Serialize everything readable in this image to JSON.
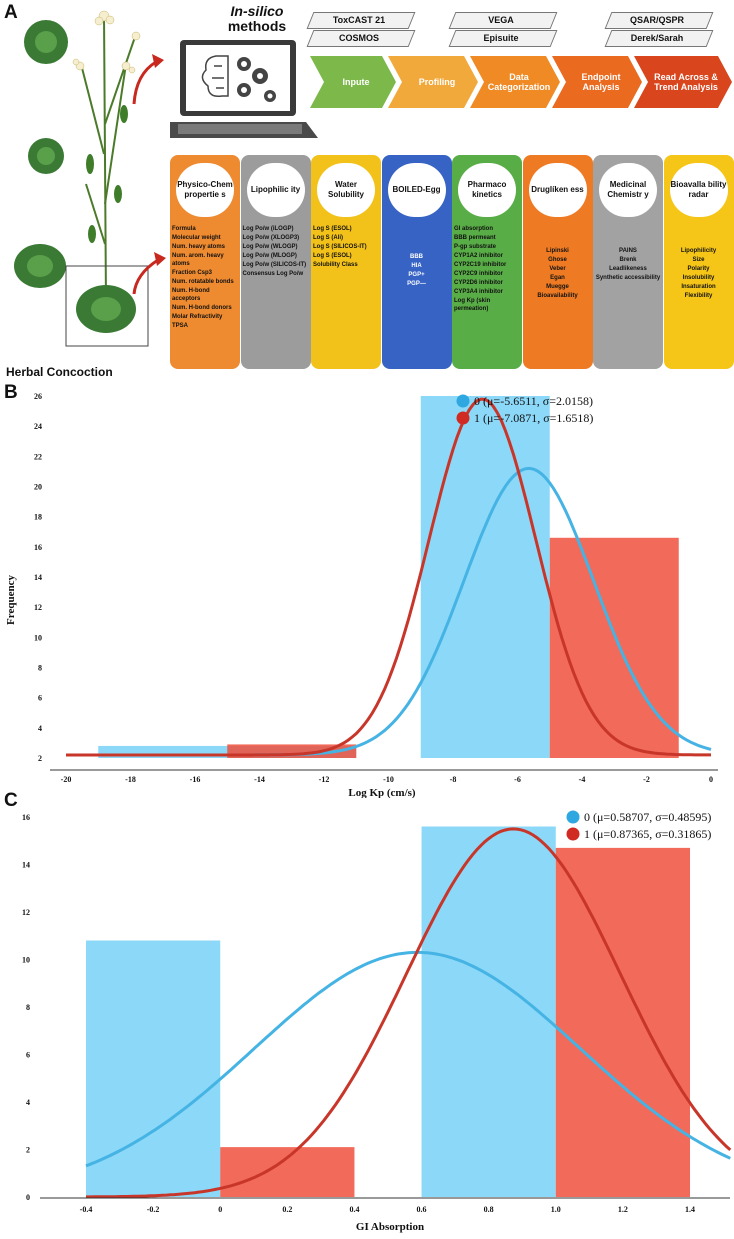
{
  "panels": {
    "a": "A",
    "b": "B",
    "c": "C"
  },
  "panel_a": {
    "herbal_label": "Herbal Concoction",
    "insilico_prefix": "In-silico",
    "insilico_suffix": "methods",
    "tools": [
      {
        "back": "ToxCAST 21",
        "front": "COSMOS"
      },
      {
        "back": "VEGA",
        "front": "Episuite"
      },
      {
        "back": "QSAR/QSPR",
        "front": "Derek/Sarah"
      }
    ],
    "steps": [
      {
        "label": "Inpute",
        "color": "#7db84a"
      },
      {
        "label": "Profiling",
        "color": "#f2a93b"
      },
      {
        "label": "Data Categorization",
        "color": "#f08a24"
      },
      {
        "label": "Endpoint Analysis",
        "color": "#ea6a1f"
      },
      {
        "label": "Read Across & Trend Analysis",
        "color": "#d9461e"
      }
    ],
    "columns": [
      {
        "title": "Physico-Chem propertie s",
        "color": "#ee8a2f",
        "align": "left",
        "items": [
          "Formula",
          "Molecular weight",
          "Num. heavy atoms",
          "Num. arom. heavy atoms",
          "Fraction Csp3",
          "Num. rotatable bonds",
          "Num. H-bond acceptors",
          "Num. H-bond donors",
          "Molar Refractivity",
          "TPSA"
        ]
      },
      {
        "title": "Lipophilic ity",
        "color": "#9c9c9c",
        "align": "left",
        "items": [
          "Log Po/w (iLOGP)",
          "Log Po/w (XLOGP3)",
          "Log Po/w (WLOGP)",
          "Log Po/w (MLOGP)",
          "Log Po/w (SILICOS-IT)",
          "Consensus Log Po/w"
        ]
      },
      {
        "title": "Water Solubility",
        "color": "#f2c21b",
        "align": "left",
        "items": [
          "Log S (ESOL)",
          "Log S (Ali)",
          "Log S (SILICOS-IT)",
          "Log S (ESOL)",
          "Solubility Class"
        ]
      },
      {
        "title": "BOILED-Egg",
        "color": "#3763c4",
        "align": "center",
        "items": [
          "BBB",
          "HIA",
          "PGP+",
          "PGP—"
        ]
      },
      {
        "title": "Pharmaco kinetics",
        "color": "#59ad47",
        "align": "left",
        "items": [
          "GI absorption",
          "BBB permeant",
          "P-gp substrate",
          "CYP1A2 inhibitor",
          "CYP2C19 inhibitor",
          "CYP2C9 inhibitor",
          "CYP2D6 inhibitor",
          "CYP3A4 inhibitor",
          "Log Kp (skin permeation)"
        ]
      },
      {
        "title": "Druglíken ess",
        "color": "#ee7b24",
        "align": "center",
        "items": [
          "Lipinski",
          "Ghose",
          "Veber",
          "Egan",
          "Muegge",
          "Bioavailability"
        ]
      },
      {
        "title": "Medicinal Chemistr y",
        "color": "#a2a2a2",
        "align": "center",
        "items": [
          "PAINS",
          "Brenk",
          "Leadlikeness",
          "Synthetic accessibility"
        ]
      },
      {
        "title": "Bioavalla bility radar",
        "color": "#f5c518",
        "align": "center",
        "items": [
          "Lipophilicity",
          "Size",
          "Polarity",
          "Insolubility",
          "Insaturation",
          "Flexibility"
        ]
      }
    ]
  },
  "chart_data": [
    {
      "panel": "B",
      "type": "bar",
      "title": "",
      "xlabel": "Log Kp (cm/s)",
      "ylabel": "Frequency",
      "xlim": [
        -20,
        0
      ],
      "ylim": [
        2,
        26
      ],
      "xticks": [
        -20,
        -18,
        -16,
        -14,
        -12,
        -10,
        -8,
        -6,
        -4,
        -2,
        0
      ],
      "yticks": [
        2,
        4,
        6,
        8,
        10,
        12,
        14,
        16,
        18,
        20,
        22,
        24,
        26
      ],
      "series": [
        {
          "name": "0",
          "legend": "0 (μ=-5.6511, σ=2.0158)",
          "color": "#5bc8f5",
          "bins": [
            {
              "from": -19,
              "to": -11,
              "value": 2.8
            },
            {
              "from": -9,
              "to": -5,
              "value": 26
            }
          ],
          "curve": {
            "mu": -5.6511,
            "sigma": 2.0158,
            "base": 2.2,
            "peak": 21.2
          }
        },
        {
          "name": "1",
          "legend": "1 (μ=-7.0871, σ=1.6518)",
          "color": "#f0503c",
          "bins": [
            {
              "from": -15,
              "to": -11,
              "value": 2.9
            },
            {
              "from": -5,
              "to": -1,
              "value": 16.6
            }
          ],
          "curve": {
            "mu": -7.0871,
            "sigma": 1.6518,
            "base": 2.2,
            "peak": 25.8
          }
        }
      ]
    },
    {
      "panel": "C",
      "type": "bar",
      "title": "",
      "xlabel": "GI Absorption",
      "ylabel": "",
      "xlim": [
        -0.4,
        1.4
      ],
      "ylim": [
        0,
        16
      ],
      "xticks": [
        -0.4,
        -0.2,
        0,
        0.2,
        0.4,
        0.6,
        0.8,
        1.0,
        1.2,
        1.4
      ],
      "xtick_labels": [
        "-0.4",
        "-0.2",
        "0",
        "0.2",
        "0.4",
        "0.6",
        "0.8",
        "1.0",
        "1.2",
        "1.4"
      ],
      "yticks": [
        0,
        2,
        4,
        6,
        8,
        10,
        12,
        14,
        16
      ],
      "series": [
        {
          "name": "0",
          "legend": "0 (μ=0.58707, σ=0.48595)",
          "color": "#5bc8f5",
          "bins": [
            {
              "from": -0.4,
              "to": 0,
              "value": 10.8
            },
            {
              "from": 0.6,
              "to": 1.0,
              "value": 15.6
            }
          ],
          "curve": {
            "mu": 0.58707,
            "sigma": 0.48595,
            "base": 0,
            "peak": 10.3
          }
        },
        {
          "name": "1",
          "legend": "1 (μ=0.87365, σ=0.31865)",
          "color": "#f0503c",
          "bins": [
            {
              "from": 0,
              "to": 0.4,
              "value": 2.1
            },
            {
              "from": 1.0,
              "to": 1.4,
              "value": 14.7
            }
          ],
          "curve": {
            "mu": 0.87365,
            "sigma": 0.31865,
            "base": 0,
            "peak": 15.5
          }
        }
      ]
    }
  ]
}
